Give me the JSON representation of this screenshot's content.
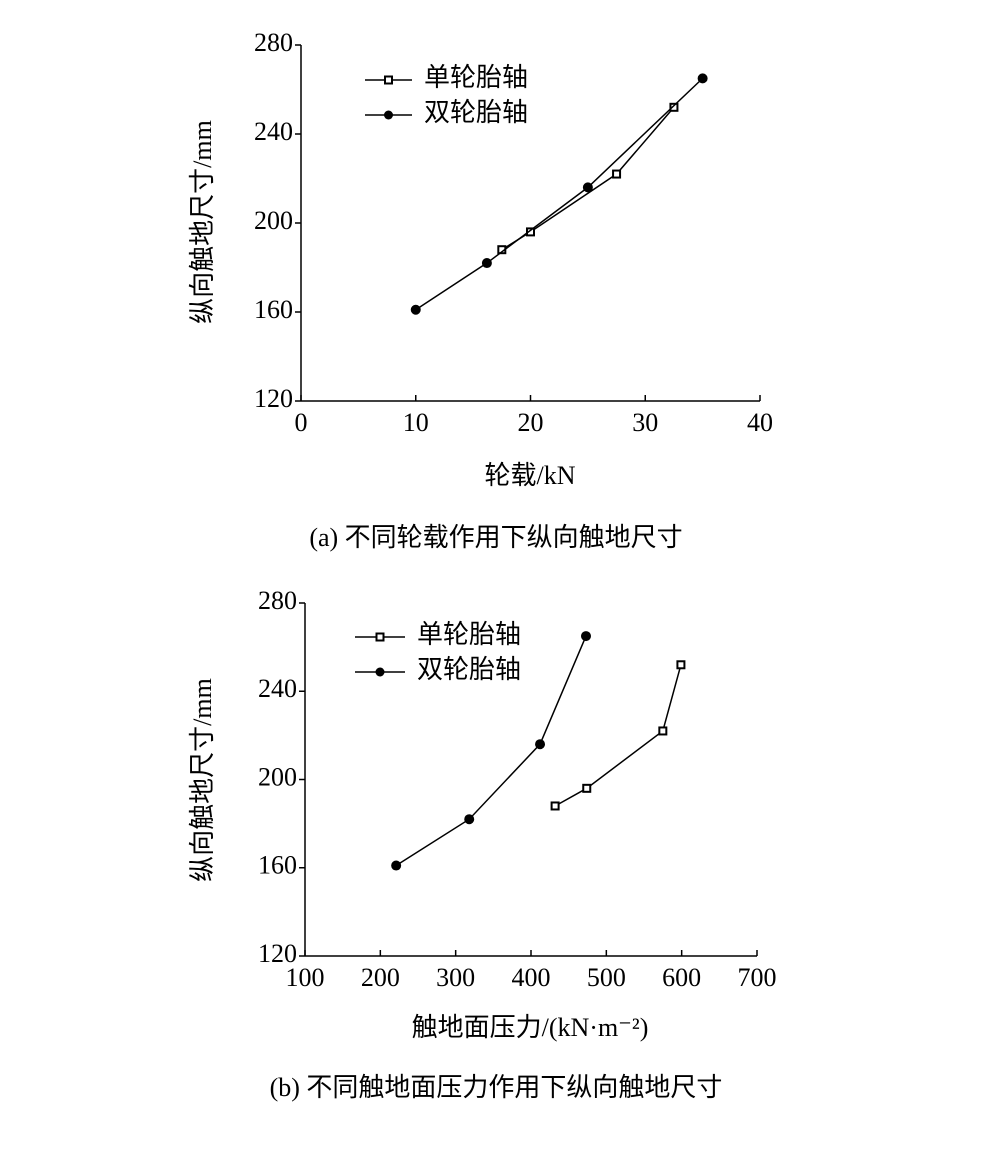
{
  "chart_data": [
    {
      "type": "line",
      "caption": "(a) 不同轮载作用下纵向触地尺寸",
      "x_label": "轮载/kN",
      "y_label": "纵向触地尺寸/mm",
      "xlim": [
        0,
        40
      ],
      "xticks": [
        0,
        10,
        20,
        30,
        40
      ],
      "ylim": [
        120,
        280
      ],
      "yticks": [
        120,
        160,
        200,
        240,
        280
      ],
      "legend": "upper left",
      "series": [
        {
          "name": "单轮胎轴",
          "color": "#000000",
          "marker": "square",
          "x": [
            17.5,
            20,
            27.5,
            32.5
          ],
          "values": [
            188,
            196,
            222,
            252
          ]
        },
        {
          "name": "双轮胎轴",
          "color": "#000000",
          "marker": "circle",
          "x": [
            10,
            16.2,
            25,
            35
          ],
          "values": [
            161,
            182,
            216,
            265
          ]
        }
      ]
    },
    {
      "type": "line",
      "caption": "(b) 不同触地面压力作用下纵向触地尺寸",
      "x_label": "触地面压力/(kN·m⁻²)",
      "y_label": "纵向触地尺寸/mm",
      "xlim": [
        100,
        700
      ],
      "xticks": [
        100,
        200,
        300,
        400,
        500,
        600,
        700
      ],
      "ylim": [
        120,
        280
      ],
      "yticks": [
        120,
        160,
        200,
        240,
        280
      ],
      "legend": "upper left",
      "series": [
        {
          "name": "单轮胎轴",
          "color": "#000000",
          "marker": "square",
          "x": [
            432,
            474,
            575,
            599
          ],
          "values": [
            188,
            196,
            222,
            252
          ]
        },
        {
          "name": "双轮胎轴",
          "color": "#000000",
          "marker": "circle",
          "x": [
            221,
            318,
            412,
            473
          ],
          "values": [
            161,
            182,
            216,
            265
          ]
        }
      ]
    }
  ]
}
